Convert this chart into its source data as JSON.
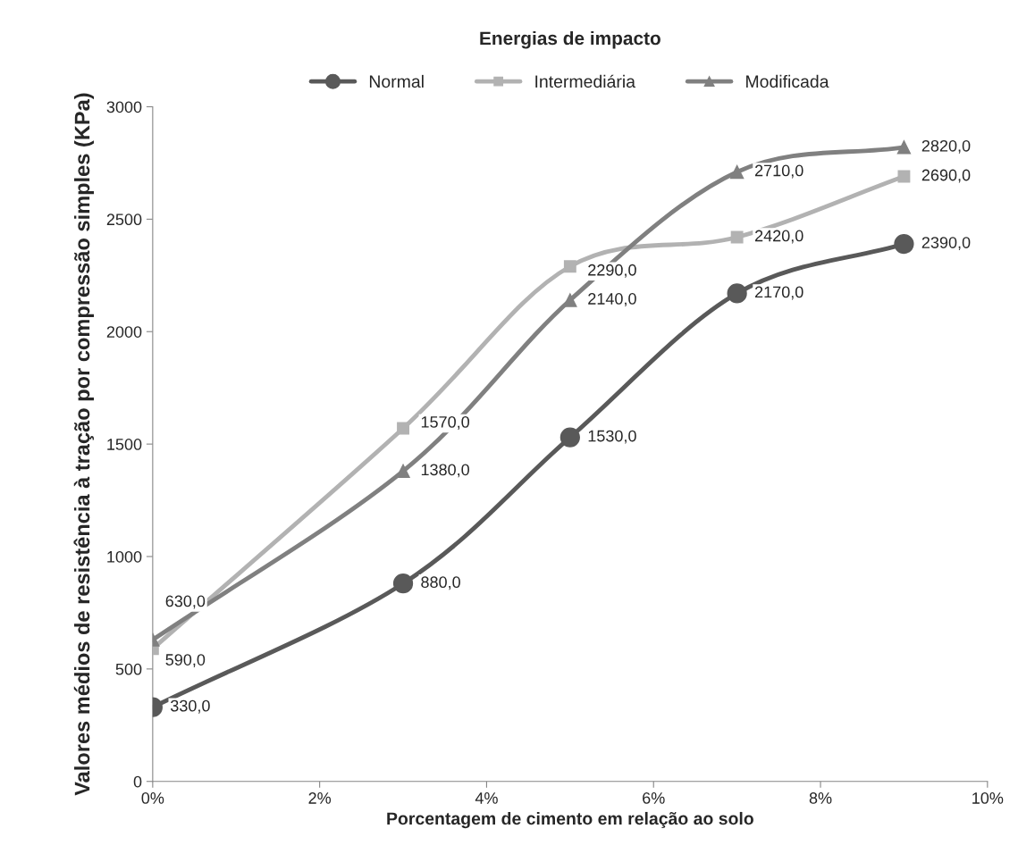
{
  "chart_data": {
    "type": "line",
    "title": "Energias de impacto",
    "xlabel": "Porcentagem de cimento em relação ao solo",
    "ylabel": "Valores médios de resistência à tração por compressão simples (KPa)",
    "x": [
      0,
      3,
      5,
      7,
      9
    ],
    "series": [
      {
        "name": "Normal",
        "color": "#595959",
        "marker": "circle",
        "values": [
          330,
          880,
          1530,
          2170,
          2390
        ],
        "value_labels": [
          "330,0",
          "880,0",
          "1530,0",
          "2170,0",
          "2390,0"
        ]
      },
      {
        "name": "Intermediária",
        "color": "#b2b2b2",
        "marker": "square",
        "values": [
          590,
          1570,
          2290,
          2420,
          2690
        ],
        "value_labels": [
          "590,0",
          "1570,0",
          "2290,0",
          "2420,0",
          "2690,0"
        ]
      },
      {
        "name": "Modificada",
        "color": "#808080",
        "marker": "triangle",
        "values": [
          630,
          1380,
          2140,
          2710,
          2820
        ],
        "value_labels": [
          "630,0",
          "1380,0",
          "2140,0",
          "2710,0",
          "2820,0"
        ]
      }
    ],
    "xlim": [
      0,
      10
    ],
    "xticks": [
      {
        "value": 0,
        "label": "0%"
      },
      {
        "value": 2,
        "label": "2%"
      },
      {
        "value": 4,
        "label": "4%"
      },
      {
        "value": 6,
        "label": "6%"
      },
      {
        "value": 8,
        "label": "8%"
      },
      {
        "value": 10,
        "label": "10%"
      }
    ],
    "ylim": [
      0,
      3000
    ],
    "yticks": [
      0,
      500,
      1000,
      1500,
      2000,
      2500,
      3000
    ],
    "grid": false,
    "legend": "top",
    "line_style": "solid"
  }
}
